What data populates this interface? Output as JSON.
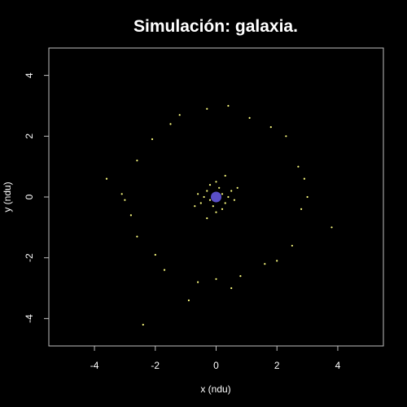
{
  "chart_data": {
    "type": "scatter",
    "title": "Simulación: galaxia.",
    "xlabel": "x (ndu)",
    "ylabel": "y (ndu)",
    "xlim": [
      -5.5,
      5.5
    ],
    "ylim": [
      -4.9,
      4.9
    ],
    "x_ticks": [
      -4,
      -2,
      0,
      2,
      4
    ],
    "y_ticks": [
      -4,
      -2,
      0,
      2,
      4
    ],
    "x_tick_labels": [
      "-4",
      "-2",
      "0",
      "2",
      "4"
    ],
    "y_tick_labels": [
      "-4",
      "-2",
      "0",
      "2",
      "4"
    ],
    "grid": false,
    "background_color": "#000000",
    "frame_color": "#bfbfbf",
    "series": [
      {
        "marker_color": "#ffff80",
        "points": [
          [
            -3.6,
            0.6
          ],
          [
            3.8,
            -1.0
          ],
          [
            -2.4,
            -4.2
          ],
          [
            -0.9,
            -3.4
          ],
          [
            0.5,
            -3.0
          ],
          [
            -3.0,
            -0.1
          ],
          [
            -3.1,
            0.1
          ],
          [
            2.9,
            0.6
          ],
          [
            2.7,
            1.0
          ],
          [
            -2.6,
            1.2
          ],
          [
            -0.3,
            2.9
          ],
          [
            0.4,
            3.0
          ],
          [
            1.1,
            2.6
          ],
          [
            -1.5,
            2.4
          ],
          [
            -2.1,
            1.9
          ],
          [
            2.3,
            2.0
          ],
          [
            -1.7,
            -2.4
          ],
          [
            1.6,
            -2.2
          ],
          [
            -2.6,
            -1.3
          ],
          [
            2.5,
            -1.6
          ],
          [
            0.0,
            -2.7
          ],
          [
            0.8,
            -2.6
          ],
          [
            -0.6,
            -2.8
          ],
          [
            3.0,
            0.0
          ],
          [
            2.8,
            -0.4
          ],
          [
            -2.8,
            -0.6
          ],
          [
            -2.0,
            -1.9
          ],
          [
            2.0,
            -2.1
          ],
          [
            -1.2,
            2.7
          ],
          [
            1.8,
            2.3
          ],
          [
            0.2,
            0.1
          ],
          [
            -0.2,
            -0.1
          ],
          [
            0.3,
            -0.2
          ],
          [
            -0.3,
            0.2
          ],
          [
            0.1,
            0.3
          ],
          [
            -0.1,
            -0.3
          ],
          [
            0.4,
            0.0
          ],
          [
            -0.4,
            0.0
          ],
          [
            0.2,
            -0.4
          ],
          [
            -0.2,
            0.4
          ],
          [
            0.5,
            0.2
          ],
          [
            -0.5,
            -0.2
          ],
          [
            0.6,
            -0.1
          ],
          [
            -0.6,
            0.1
          ],
          [
            0.0,
            0.5
          ],
          [
            0.0,
            -0.5
          ],
          [
            0.7,
            0.3
          ],
          [
            -0.7,
            -0.3
          ],
          [
            0.3,
            0.7
          ],
          [
            -0.3,
            -0.7
          ]
        ]
      },
      {
        "marker_color": "#5a4fc8",
        "points": [
          [
            0.0,
            0.0
          ]
        ]
      }
    ]
  }
}
